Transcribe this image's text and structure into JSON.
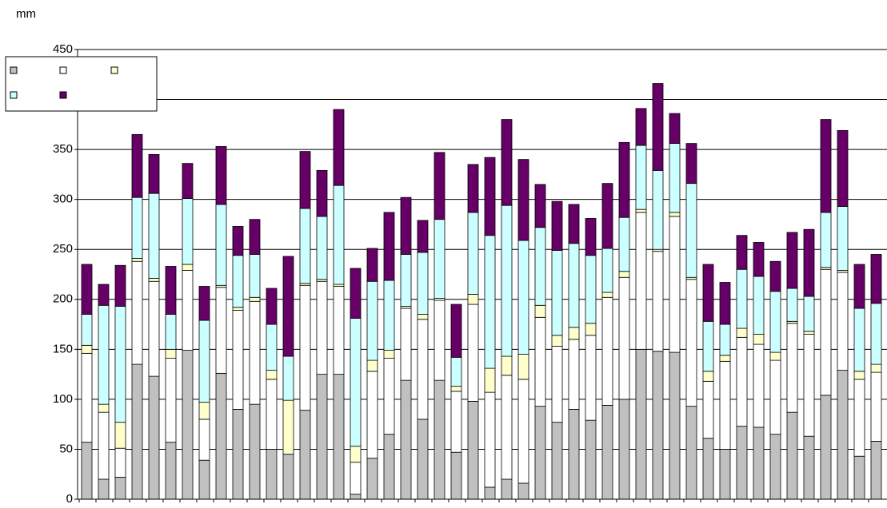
{
  "chart_data": {
    "type": "bar",
    "stacked": true,
    "y_label": "mm",
    "categories": [
      null,
      null,
      null,
      null,
      null,
      null,
      null,
      null,
      null,
      null,
      null,
      null,
      null,
      null,
      null,
      null,
      null,
      null,
      null,
      null,
      null,
      null,
      null,
      null,
      null,
      null,
      null,
      null,
      null,
      null,
      null,
      null,
      null,
      null,
      null,
      null,
      null,
      null,
      null,
      null,
      null,
      null,
      null,
      null,
      null,
      null,
      null,
      null
    ],
    "series": [
      {
        "color": "#c0c0c0",
        "values": [
          57,
          20,
          22,
          135,
          123,
          57,
          149,
          39,
          126,
          90,
          95,
          50,
          45,
          89,
          125,
          125,
          5,
          41,
          65,
          119,
          80,
          119,
          47,
          98,
          12,
          20,
          16,
          93,
          77,
          90,
          79,
          94,
          100,
          150,
          148,
          147,
          93,
          61,
          50,
          73,
          72,
          65,
          87,
          63,
          104,
          129,
          43,
          58
        ]
      },
      {
        "color": "#ffffff",
        "values": [
          89,
          67,
          29,
          103,
          95,
          84,
          80,
          41,
          86,
          99,
          103,
          70,
          0,
          125,
          93,
          88,
          32,
          87,
          76,
          72,
          100,
          80,
          61,
          97,
          95,
          104,
          104,
          89,
          76,
          70,
          85,
          108,
          122,
          137,
          100,
          136,
          127,
          57,
          88,
          89,
          83,
          74,
          89,
          102,
          126,
          98,
          77,
          69
        ]
      },
      {
        "color": "#ffffcc",
        "values": [
          8,
          8,
          26,
          3,
          3,
          9,
          6,
          17,
          2,
          3,
          4,
          9,
          54,
          2,
          2,
          2,
          16,
          11,
          8,
          2,
          5,
          2,
          5,
          10,
          24,
          19,
          25,
          12,
          11,
          12,
          12,
          5,
          6,
          3,
          2,
          4,
          2,
          10,
          6,
          9,
          10,
          8,
          2,
          3,
          2,
          2,
          8,
          8
        ]
      },
      {
        "color": "#ccffff",
        "values": [
          31,
          99,
          116,
          61,
          85,
          35,
          66,
          82,
          81,
          52,
          43,
          46,
          44,
          75,
          63,
          99,
          128,
          79,
          70,
          52,
          62,
          79,
          29,
          82,
          133,
          151,
          114,
          78,
          85,
          84,
          68,
          44,
          54,
          64,
          79,
          69,
          94,
          50,
          31,
          59,
          58,
          61,
          33,
          35,
          55,
          64,
          63,
          61
        ]
      },
      {
        "color": "#660066",
        "values": [
          50,
          21,
          41,
          63,
          39,
          48,
          35,
          34,
          58,
          29,
          35,
          36,
          100,
          57,
          46,
          76,
          50,
          33,
          68,
          57,
          32,
          67,
          53,
          48,
          78,
          86,
          81,
          43,
          49,
          39,
          37,
          65,
          75,
          37,
          87,
          30,
          40,
          57,
          42,
          34,
          34,
          30,
          56,
          67,
          93,
          76,
          44,
          49
        ]
      }
    ],
    "ylim": [
      0,
      450
    ],
    "yticks": [
      0,
      50,
      100,
      150,
      200,
      250,
      300,
      350,
      400,
      450
    ],
    "grid": true,
    "legend": "top-left"
  }
}
